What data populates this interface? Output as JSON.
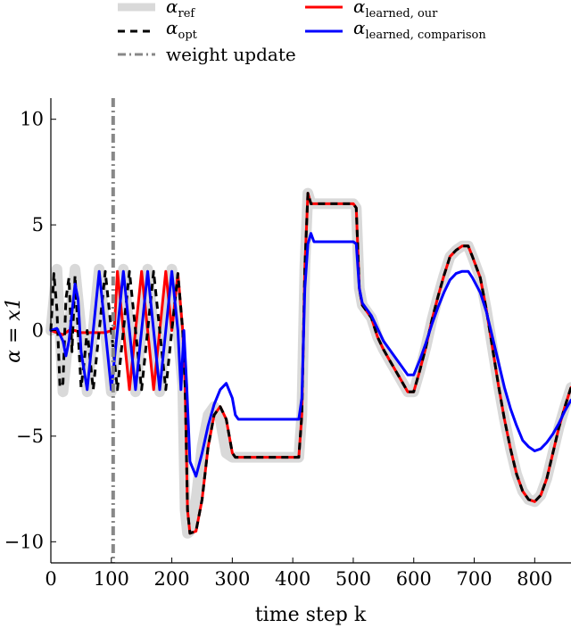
{
  "chart_data": {
    "type": "line",
    "xlabel": "time step k",
    "ylabel": "α = x1",
    "xlim": [
      0,
      860
    ],
    "ylim": [
      -11,
      11
    ],
    "xticks": [
      "0",
      "100",
      "200",
      "300",
      "400",
      "500",
      "600",
      "700",
      "800"
    ],
    "xtick_values": [
      0,
      100,
      200,
      300,
      400,
      500,
      600,
      700,
      800
    ],
    "yticks": [
      "−10",
      "−5",
      "0",
      "5",
      "10"
    ],
    "ytick_values": [
      -10,
      -5,
      0,
      5,
      10
    ],
    "grid": false,
    "legend_position": "top",
    "vertical_markers": [
      {
        "name": "weight update",
        "x": 103
      }
    ],
    "series": [
      {
        "name": "α_ref",
        "label_main": "α",
        "label_sub": "ref",
        "color": "#d9d9d9",
        "style": "thick",
        "x": [
          0,
          10,
          20,
          30,
          40,
          50,
          60,
          70,
          80,
          90,
          100,
          110,
          120,
          130,
          140,
          150,
          160,
          170,
          180,
          190,
          200,
          210,
          218,
          222,
          226,
          230,
          240,
          250,
          260,
          270,
          280,
          290,
          300,
          305,
          310,
          320,
          330,
          340,
          350,
          360,
          370,
          380,
          390,
          400,
          410,
          415,
          420,
          425,
          430,
          435,
          440,
          450,
          460,
          470,
          480,
          490,
          500,
          505,
          510,
          515,
          520,
          525,
          530,
          540,
          550,
          560,
          570,
          580,
          590,
          600,
          610,
          620,
          630,
          640,
          650,
          660,
          670,
          680,
          690,
          697,
          710,
          720,
          730,
          740,
          750,
          760,
          770,
          780,
          790,
          800,
          810,
          820,
          830,
          840,
          850,
          860
        ],
        "values": [
          0,
          2.9,
          -2.9,
          0,
          2.9,
          0,
          -2.9,
          0,
          2.9,
          0,
          -2.9,
          0,
          2.9,
          0,
          -2.9,
          0,
          2.9,
          0,
          -2.9,
          0,
          2.9,
          0,
          -2.6,
          -8.5,
          -9.6,
          -9.5,
          -8,
          -5.5,
          -4,
          -3.6,
          -4.2,
          -5.8,
          -6,
          -6,
          -6,
          -6,
          -6,
          -6,
          -6,
          -6,
          -6,
          -6,
          -6,
          -6,
          -6,
          -4,
          3,
          6.5,
          6,
          6,
          6,
          6,
          6,
          6,
          6,
          6,
          6,
          5.8,
          2,
          1.2,
          1,
          0.8,
          0.6,
          -0.3,
          -0.9,
          -1.4,
          -1.9,
          -2.4,
          -2.9,
          -2.9,
          -1.9,
          -0.8,
          0.5,
          1.6,
          2.6,
          3.5,
          3.8,
          4,
          4,
          3.5,
          2.5,
          1,
          -0.8,
          -2.6,
          -4.2,
          -5.6,
          -6.8,
          -7.6,
          -8,
          -8.1,
          -7.8,
          -7,
          -5.8,
          -4.6,
          -3.6,
          -2.7
        ],
        "y": [
          0,
          2.9,
          -2.9,
          0,
          2.9,
          0,
          -2.9,
          0,
          2.9,
          0,
          -2.9,
          0,
          2.9,
          0,
          -2.9,
          0,
          2.9,
          0,
          -2.9,
          0,
          2.9,
          0,
          -2.6,
          -8.5,
          -9.6,
          -9.5,
          -8,
          -5.5,
          -4,
          -3.6,
          -4.2,
          -5.8,
          -6,
          -6,
          -6,
          -6,
          -6,
          -6,
          -6,
          -6,
          -6,
          -6,
          -6,
          -6,
          -6,
          -4,
          3,
          6.5,
          6,
          6,
          6,
          6,
          6,
          6,
          6,
          6,
          6,
          5.8,
          2,
          1.2,
          1,
          0.8,
          0.6,
          -0.3,
          -0.9,
          -1.4,
          -1.9,
          -2.4,
          -2.9,
          -2.9,
          -1.9,
          -0.8,
          0.5,
          1.6,
          2.6,
          3.5,
          3.8,
          4,
          4,
          3.5,
          2.5,
          1,
          -0.8,
          -2.6,
          -4.2,
          -5.6,
          -6.8,
          -7.6,
          -8,
          -8.1,
          -7.8,
          -7,
          -5.8,
          -4.6,
          -3.6,
          -2.7
        ]
      },
      {
        "name": "α_opt",
        "label_main": "α",
        "label_sub": "opt",
        "color": "#000000",
        "style": "dashed",
        "x": [
          0,
          5,
          10,
          15,
          20,
          25,
          30,
          35,
          40,
          45,
          50,
          55,
          60,
          70,
          80,
          90,
          100,
          110,
          120,
          130,
          140,
          150,
          160,
          170,
          180,
          190,
          200,
          210,
          218,
          222,
          226,
          230,
          240,
          250,
          260,
          270,
          280,
          290,
          300,
          305,
          310,
          320,
          330,
          340,
          350,
          360,
          370,
          380,
          390,
          400,
          410,
          415,
          420,
          425,
          430,
          435,
          440,
          450,
          460,
          470,
          480,
          490,
          500,
          505,
          510,
          515,
          520,
          525,
          530,
          540,
          550,
          560,
          570,
          580,
          590,
          600,
          610,
          620,
          630,
          640,
          650,
          660,
          670,
          680,
          690,
          697,
          710,
          720,
          730,
          740,
          750,
          760,
          770,
          780,
          790,
          800,
          810,
          820,
          830,
          840,
          850,
          860
        ],
        "y": [
          0,
          2.7,
          1,
          -2.7,
          -2.5,
          1.5,
          2.5,
          -1,
          2.6,
          0,
          -2.7,
          -1.5,
          0,
          -2.8,
          0,
          2.8,
          0,
          -2.8,
          0,
          2.8,
          0,
          -2.8,
          0,
          2.8,
          0,
          -2.8,
          0,
          2.7,
          0,
          -2.6,
          -8.5,
          -9.6,
          -9.5,
          -8,
          -5.5,
          -4,
          -3.6,
          -4.2,
          -5.8,
          -6,
          -6,
          -6,
          -6,
          -6,
          -6,
          -6,
          -6,
          -6,
          -6,
          -6,
          -6,
          -4,
          3,
          6.5,
          6,
          6,
          6,
          6,
          6,
          6,
          6,
          6,
          6,
          5.8,
          2,
          1.2,
          1,
          0.8,
          0.6,
          -0.3,
          -0.9,
          -1.4,
          -1.9,
          -2.4,
          -2.9,
          -2.9,
          -1.9,
          -0.8,
          0.5,
          1.6,
          2.6,
          3.5,
          3.8,
          4,
          4,
          3.5,
          2.5,
          1,
          -0.8,
          -2.6,
          -4.2,
          -5.6,
          -6.8,
          -7.6,
          -8,
          -8.1,
          -7.8,
          -7,
          -5.8,
          -4.6,
          -3.6,
          -2.7
        ]
      },
      {
        "name": "α_learned, our",
        "label_main": "α",
        "label_sub": "learned, our",
        "color": "#ff0000",
        "style": "solid",
        "x": [
          0,
          10,
          20,
          30,
          40,
          50,
          60,
          70,
          80,
          90,
          100,
          105,
          110,
          120,
          130,
          140,
          150,
          160,
          170,
          180,
          190,
          200,
          210,
          218,
          222,
          226,
          230,
          240,
          250,
          260,
          270,
          280,
          290,
          300,
          305,
          310,
          320,
          330,
          340,
          350,
          360,
          370,
          380,
          390,
          400,
          410,
          415,
          420,
          425,
          430,
          435,
          440,
          450,
          460,
          470,
          480,
          490,
          500,
          505,
          510,
          515,
          520,
          525,
          530,
          540,
          550,
          560,
          570,
          580,
          590,
          600,
          610,
          620,
          630,
          640,
          650,
          660,
          670,
          680,
          690,
          697,
          710,
          720,
          730,
          740,
          750,
          760,
          770,
          780,
          790,
          800,
          810,
          820,
          830,
          840,
          850,
          860
        ],
        "y": [
          0,
          -0.1,
          -0.2,
          0,
          0,
          -0.1,
          -0.1,
          -0.1,
          -0.1,
          -0.1,
          0,
          0.1,
          2.8,
          0,
          -2.8,
          0,
          2.8,
          0,
          -2.8,
          0,
          2.8,
          0,
          2.7,
          0,
          -2.6,
          -8.5,
          -9.6,
          -9.5,
          -8,
          -5.5,
          -4,
          -3.6,
          -4.2,
          -5.8,
          -6,
          -6,
          -6,
          -6,
          -6,
          -6,
          -6,
          -6,
          -6,
          -6,
          -6,
          -6,
          -4,
          3,
          6.5,
          6,
          6,
          6,
          6,
          6,
          6,
          6,
          6,
          6,
          5.8,
          2,
          1.2,
          1,
          0.8,
          0.6,
          -0.3,
          -0.9,
          -1.4,
          -1.9,
          -2.4,
          -2.9,
          -2.9,
          -1.9,
          -0.8,
          0.5,
          1.6,
          2.6,
          3.5,
          3.8,
          4,
          4,
          3.5,
          2.5,
          1,
          -0.8,
          -2.6,
          -4.2,
          -5.6,
          -6.8,
          -7.6,
          -8,
          -8.1,
          -7.8,
          -7,
          -5.8,
          -4.6,
          -3.6,
          -2.7
        ]
      },
      {
        "name": "α_learned, comparison",
        "label_main": "α",
        "label_sub": "learned, comparison",
        "color": "#0000ff",
        "style": "solid",
        "x": [
          0,
          10,
          20,
          25,
          30,
          40,
          45,
          50,
          60,
          70,
          80,
          90,
          100,
          110,
          120,
          130,
          140,
          150,
          160,
          170,
          180,
          190,
          200,
          210,
          215,
          220,
          225,
          230,
          240,
          250,
          260,
          270,
          280,
          290,
          300,
          305,
          310,
          320,
          330,
          340,
          350,
          360,
          370,
          380,
          390,
          400,
          410,
          415,
          420,
          425,
          430,
          435,
          440,
          450,
          460,
          470,
          480,
          490,
          500,
          505,
          510,
          515,
          520,
          530,
          540,
          550,
          560,
          570,
          580,
          590,
          600,
          610,
          620,
          630,
          640,
          650,
          660,
          670,
          680,
          690,
          697,
          710,
          720,
          730,
          740,
          750,
          760,
          770,
          780,
          790,
          800,
          810,
          820,
          830,
          840,
          850,
          860
        ],
        "y": [
          0,
          0.1,
          -0.5,
          -1.2,
          -0.5,
          2.2,
          1.5,
          -1,
          -2.8,
          0,
          2.8,
          0,
          -2.8,
          0,
          2.8,
          0,
          -2.8,
          0,
          2.8,
          0,
          -2.8,
          0,
          2.8,
          0,
          -2.8,
          0,
          -2.8,
          -6.2,
          -6.9,
          -5.8,
          -4.5,
          -3.5,
          -2.8,
          -2.5,
          -3.2,
          -4,
          -4.2,
          -4.2,
          -4.2,
          -4.2,
          -4.2,
          -4.2,
          -4.2,
          -4.2,
          -4.2,
          -4.2,
          -4.2,
          -3.2,
          2,
          4.1,
          4.6,
          4.2,
          4.2,
          4.2,
          4.2,
          4.2,
          4.2,
          4.2,
          4.2,
          4.1,
          2,
          1.3,
          1.1,
          0.7,
          0.1,
          -0.5,
          -0.9,
          -1.3,
          -1.7,
          -2.1,
          -2.1,
          -1.4,
          -0.6,
          0.3,
          1.1,
          1.8,
          2.4,
          2.7,
          2.8,
          2.8,
          2.5,
          1.8,
          0.9,
          -0.3,
          -1.5,
          -2.7,
          -3.7,
          -4.5,
          -5.2,
          -5.5,
          -5.7,
          -5.6,
          -5.3,
          -4.9,
          -4.4,
          -3.8,
          -3.3
        ]
      }
    ]
  }
}
